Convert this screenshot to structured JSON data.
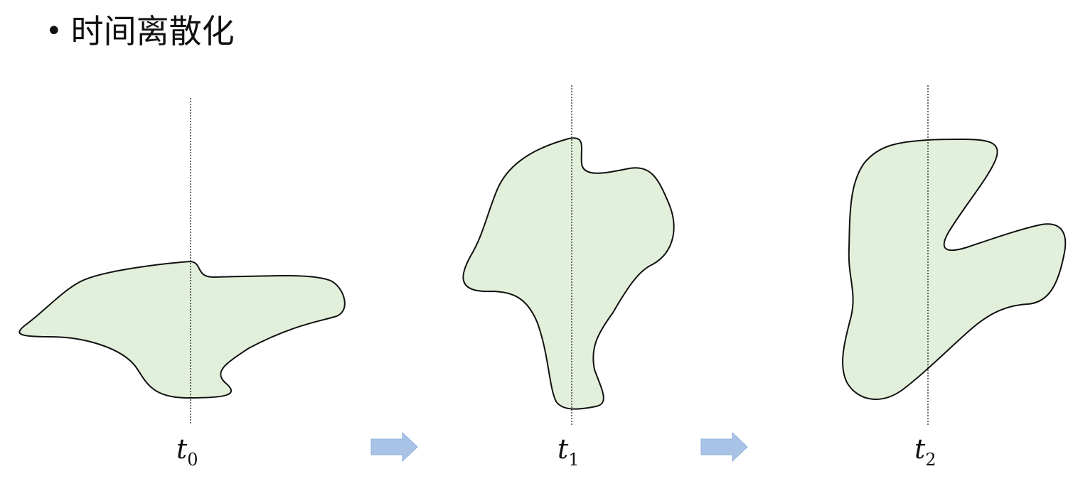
{
  "slide": {
    "bullet": "•",
    "title": "时间离散化"
  },
  "colors": {
    "shape_fill": "#e2efda",
    "shape_stroke": "#111111",
    "arrow_fill": "#a9c3e6",
    "arrow_stroke": "#8fb0dc"
  },
  "frames": [
    {
      "label": "t",
      "subscript": "0"
    },
    {
      "label": "t",
      "subscript": "1"
    },
    {
      "label": "t",
      "subscript": "2"
    }
  ],
  "arrows": [
    {
      "icon": "right-arrow-icon"
    },
    {
      "icon": "right-arrow-icon"
    }
  ]
}
